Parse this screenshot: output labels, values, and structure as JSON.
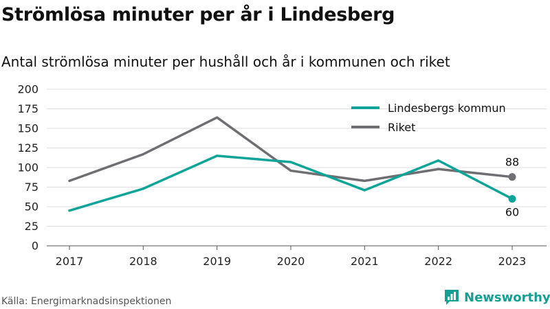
{
  "title": "Strömlösa minuter per år i Lindesberg",
  "subtitle": "Antal strömlösa minuter per hushåll och år i kommunen och riket",
  "source": "Källa: Energimarknadsinspektionen",
  "brand": {
    "name": "Newsworthy",
    "icon": "newsworthy-logo-icon",
    "color": "#159e93"
  },
  "colors": {
    "lindesberg": "#0ea598",
    "riket": "#6e6e73",
    "grid": "#dddddd"
  },
  "chart_data": {
    "type": "line",
    "title": "Strömlösa minuter per år i Lindesberg",
    "subtitle": "Antal strömlösa minuter per hushåll och år i kommunen och riket",
    "x": [
      "2017",
      "2018",
      "2019",
      "2020",
      "2021",
      "2022",
      "2023"
    ],
    "yticks": [
      "0",
      "25",
      "50",
      "75",
      "100",
      "125",
      "150",
      "175",
      "200"
    ],
    "ylim": [
      0,
      200
    ],
    "grid": true,
    "legend_position": "top-right",
    "series": [
      {
        "name": "Lindesbergs kommun",
        "values": [
          45,
          73,
          115,
          107,
          71,
          109,
          60
        ],
        "color": "#0ea598",
        "end_label": "60"
      },
      {
        "name": "Riket",
        "values": [
          83,
          117,
          164,
          96,
          83,
          98,
          88
        ],
        "color": "#6e6e73",
        "end_label": "88"
      }
    ]
  }
}
